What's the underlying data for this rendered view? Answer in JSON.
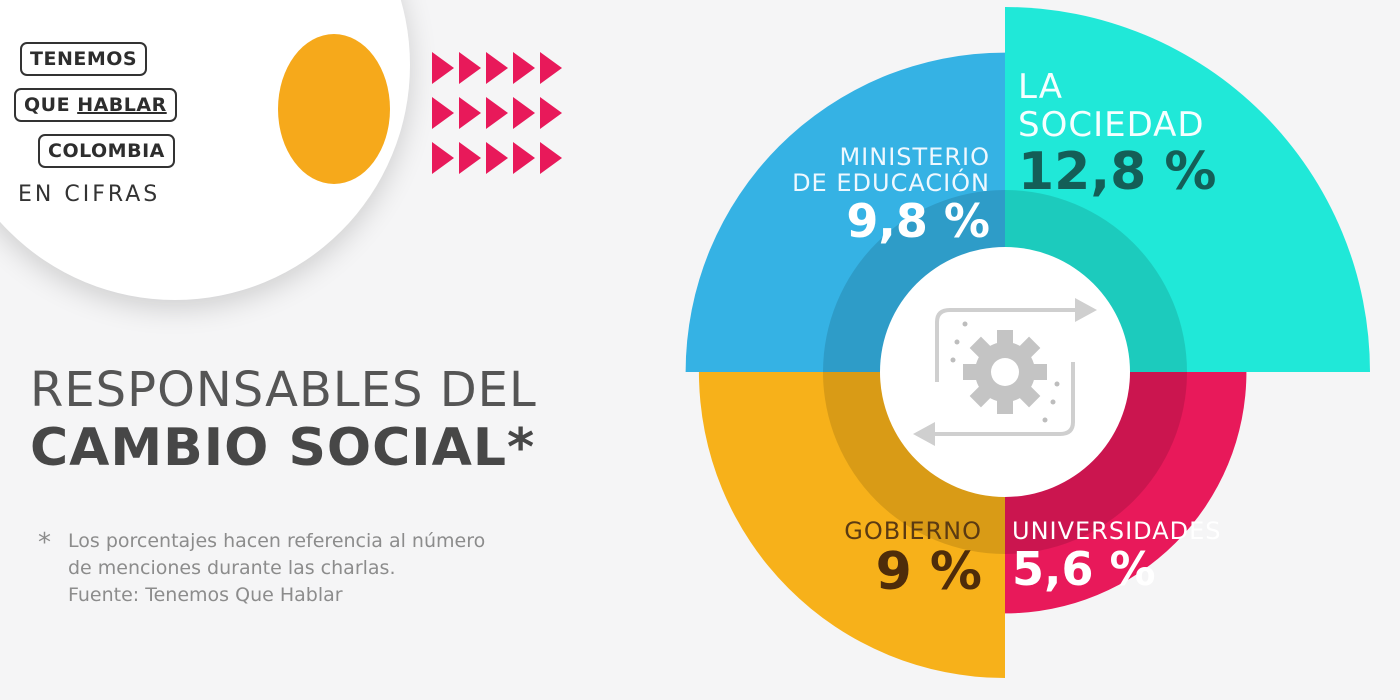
{
  "logo": {
    "line1": "TENEMOS",
    "line2_a": "QUE",
    "line2_b": "HABLAR",
    "line3": "COLOMBIA",
    "line4": "EN CIFRAS"
  },
  "headline": {
    "line1": "RESPONSABLES DEL",
    "line2": "CAMBIO SOCIAL*"
  },
  "footnote": {
    "star": "*",
    "line1": "Los porcentajes hacen referencia al número",
    "line2": "de menciones durante las charlas.",
    "line3": "Fuente: Tenemos Que Hablar"
  },
  "center_icon": "gear-cycle-icon",
  "chart_data": {
    "type": "pie",
    "segments": [
      {
        "name_lines": [
          "LA",
          "SOCIEDAD"
        ],
        "value": 12.8,
        "display": "12,8 %",
        "color": "#20e8d8"
      },
      {
        "name_lines": [
          "UNIVERSIDADES"
        ],
        "value": 5.6,
        "display": "5,6 %",
        "color": "#e8195a"
      },
      {
        "name_lines": [
          "GOBIERNO"
        ],
        "value": 9,
        "display": "9 %",
        "color": "#f7b11a"
      },
      {
        "name_lines": [
          "MINISTERIO",
          "DE EDUCACIÓN"
        ],
        "value": 9.8,
        "display": "9,8 %",
        "color": "#35b2e4"
      }
    ]
  },
  "colors": {
    "accent_orange": "#f6a91b",
    "accent_pink": "#e8195a"
  }
}
